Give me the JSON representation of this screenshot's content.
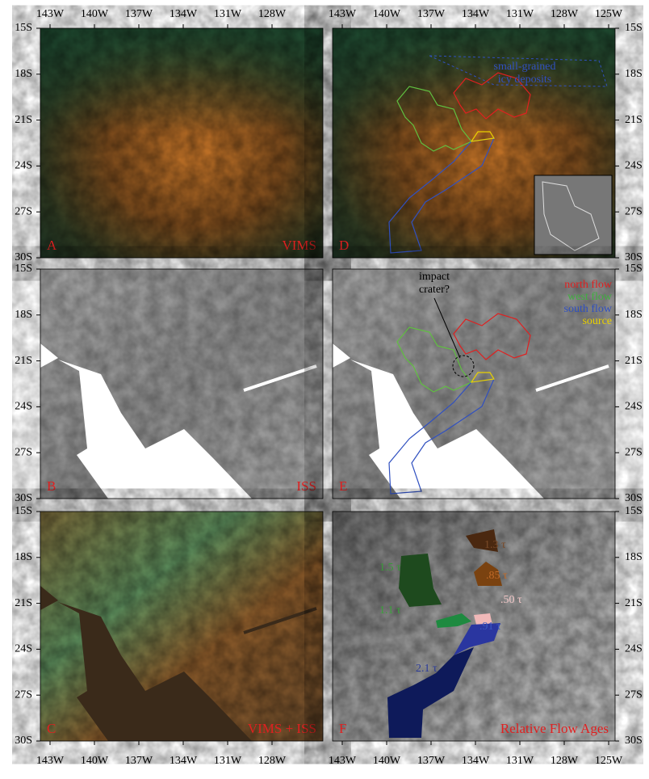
{
  "longitudes_left": [
    "143W",
    "140W",
    "137W",
    "134W",
    "131W",
    "128W"
  ],
  "longitudes_right": [
    "143W",
    "140W",
    "137W",
    "134W",
    "131W",
    "128W",
    "125W"
  ],
  "latitudes": [
    "15S",
    "18S",
    "21S",
    "24S",
    "27S",
    "30S"
  ],
  "panels": [
    {
      "letter": "A",
      "caption": "VIMS"
    },
    {
      "letter": "B",
      "caption": "ISS"
    },
    {
      "letter": "C",
      "caption": "VIMS + ISS"
    },
    {
      "letter": "D",
      "annotation": [
        "small-grained",
        "icy deposits"
      ]
    },
    {
      "letter": "E",
      "annotation": [
        "impact",
        "crater?"
      ],
      "legend": [
        {
          "label": "north flow",
          "color": "#e02020"
        },
        {
          "label": "west flow",
          "color": "#40b040"
        },
        {
          "label": "south flow",
          "color": "#3050c0"
        },
        {
          "label": "source",
          "color": "#e8d000"
        }
      ]
    },
    {
      "letter": "F",
      "caption": "Relative Flow Ages",
      "ages": [
        {
          "label": "1.3 τ",
          "color": "#7a4a28"
        },
        {
          "label": ".85 τ",
          "color": "#c06a28"
        },
        {
          "label": "1.5 τ",
          "color": "#3a9a3a"
        },
        {
          "label": "1.1 τ",
          "color": "#3aa03a"
        },
        {
          "label": ".50 τ",
          "color": "#f4c8c8"
        },
        {
          "label": ".91 τ",
          "color": "#3a58c0"
        },
        {
          "label": "2.1 τ",
          "color": "#2a3a98"
        }
      ]
    }
  ]
}
